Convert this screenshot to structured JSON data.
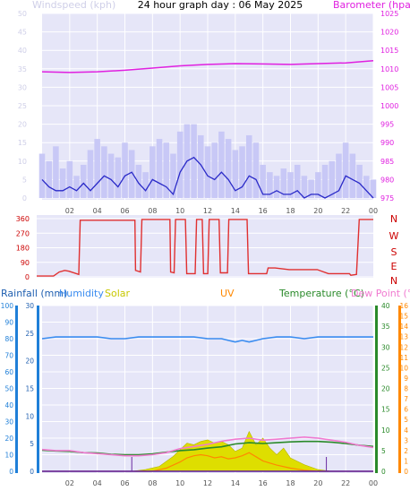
{
  "title": "24 hour graph day : 06 May 2025",
  "colors": {
    "plot_bg": "#e6e6f8",
    "grid": "#ffffff",
    "wind_gust": "#c8c8f6",
    "wind_avg": "#2a2ac8",
    "barometer": "#e020e0",
    "direction": "#e03030",
    "humidity": "#3a8cf0",
    "temperature": "#2a8a2a",
    "dewpoint": "#f07ad0",
    "solar": "#dede00",
    "uv": "#ff8800",
    "rainfall": "#1f7fd8",
    "left_label": "#cfcfe8",
    "dir_letters": "#cc0000",
    "axis_ticks": "#555555"
  },
  "chart_data": [
    {
      "type": "line",
      "name": "top",
      "x_ticks": [
        "02",
        "04",
        "06",
        "08",
        "10",
        "12",
        "14",
        "16",
        "18",
        "20",
        "22",
        "00"
      ],
      "left_axis": {
        "label": "Windspeed (kph)",
        "ticks": [
          0,
          5,
          10,
          15,
          20,
          25,
          30,
          35,
          40,
          45,
          50
        ],
        "range": [
          0,
          50
        ]
      },
      "right_axis": {
        "label": "Barometer (hpa)",
        "ticks": [
          975,
          980,
          985,
          990,
          995,
          1000,
          1005,
          1010,
          1015,
          1020,
          1025
        ],
        "range": [
          975,
          1025
        ]
      },
      "series": [
        {
          "name": "Windspeed (kph)",
          "axis": "left",
          "kind": "gust",
          "x": [
            0,
            0.5,
            1,
            1.5,
            2,
            2.5,
            3,
            3.5,
            4,
            4.5,
            5,
            5.5,
            6,
            6.5,
            7,
            7.5,
            8,
            8.5,
            9,
            9.5,
            10,
            10.5,
            11,
            11.5,
            12,
            12.5,
            13,
            13.5,
            14,
            14.5,
            15,
            15.5,
            16,
            16.5,
            17,
            17.5,
            18,
            18.5,
            19,
            19.5,
            20,
            20.5,
            21,
            21.5,
            22,
            22.5,
            23,
            23.5,
            24
          ],
          "y": [
            12,
            10,
            14,
            8,
            10,
            6,
            9,
            13,
            16,
            14,
            12,
            11,
            15,
            13,
            9,
            7,
            14,
            16,
            15,
            12,
            18,
            20,
            20,
            17,
            14,
            15,
            18,
            16,
            13,
            14,
            17,
            15,
            9,
            7,
            6,
            8,
            7,
            9,
            6,
            5,
            7,
            9,
            10,
            12,
            15,
            12,
            9,
            6,
            5
          ]
        },
        {
          "name": "Windspeed avg",
          "axis": "left",
          "kind": "average",
          "x": [
            0,
            0.5,
            1,
            1.5,
            2,
            2.5,
            3,
            3.5,
            4,
            4.5,
            5,
            5.5,
            6,
            6.5,
            7,
            7.5,
            8,
            8.5,
            9,
            9.5,
            10,
            10.5,
            11,
            11.5,
            12,
            12.5,
            13,
            13.5,
            14,
            14.5,
            15,
            15.5,
            16,
            16.5,
            17,
            17.5,
            18,
            18.5,
            19,
            19.5,
            20,
            20.5,
            21,
            21.5,
            22,
            22.5,
            23,
            23.5,
            24
          ],
          "y": [
            5,
            3,
            2,
            2,
            3,
            2,
            4,
            2,
            4,
            6,
            5,
            3,
            6,
            7,
            4,
            2,
            5,
            4,
            3,
            1,
            7,
            10,
            11,
            9,
            6,
            5,
            7,
            5,
            2,
            3,
            6,
            5,
            1,
            1,
            2,
            1,
            1,
            2,
            0,
            1,
            1,
            0,
            1,
            2,
            6,
            5,
            4,
            2,
            0
          ]
        },
        {
          "name": "Barometer (hpa)",
          "axis": "right",
          "x": [
            0,
            2,
            4,
            6,
            8,
            10,
            12,
            14,
            16,
            18,
            20,
            22,
            24
          ],
          "y": [
            1009.2,
            1009.0,
            1009.2,
            1009.6,
            1010.2,
            1010.8,
            1011.2,
            1011.4,
            1011.3,
            1011.2,
            1011.4,
            1011.6,
            1012.2
          ]
        }
      ]
    },
    {
      "type": "line",
      "name": "direction",
      "y_ticks": [
        0,
        90,
        180,
        270,
        360
      ],
      "y_range": [
        0,
        360
      ],
      "direction_labels": [
        "N",
        "W",
        "S",
        "E",
        "N"
      ],
      "series": [
        {
          "name": "Wind direction",
          "x": [
            0,
            1.2,
            1.6,
            2,
            2.3,
            3,
            3.1,
            4,
            4.5,
            5,
            5.8,
            6.3,
            6.9,
            7,
            7.05,
            7.4,
            7.5,
            8,
            8.5,
            9.1,
            9.5,
            9.55,
            9.8,
            9.9,
            10.6,
            10.7,
            11.3,
            11.4,
            11.8,
            11.9,
            12.2,
            12.3,
            13,
            13.1,
            13.6,
            13.7,
            15,
            15.1,
            15.6,
            16.4,
            16.5,
            17,
            18,
            20,
            20.8,
            20.9,
            22.3,
            22.4,
            22.8,
            23,
            23.1,
            24
          ],
          "y": [
            5,
            5,
            30,
            40,
            35,
            15,
            350,
            350,
            350,
            350,
            350,
            350,
            350,
            350,
            40,
            30,
            355,
            355,
            355,
            355,
            355,
            30,
            25,
            355,
            355,
            20,
            20,
            355,
            355,
            20,
            20,
            355,
            355,
            25,
            25,
            355,
            355,
            20,
            20,
            20,
            55,
            55,
            45,
            45,
            20,
            20,
            20,
            10,
            15,
            355,
            355,
            355
          ]
        }
      ]
    },
    {
      "type": "line",
      "name": "bottom",
      "x_ticks": [
        "02",
        "04",
        "06",
        "08",
        "10",
        "12",
        "14",
        "16",
        "18",
        "20",
        "22",
        "00"
      ],
      "legend": [
        "Rainfall (mm)",
        "Humidity",
        "Solar",
        "UV",
        "Temperature (°C)",
        "Dew Point (°C)"
      ],
      "axes": {
        "rain_left": [
          0,
          10,
          20,
          30,
          40,
          50,
          60,
          70,
          80,
          90,
          100
        ],
        "humidity_left": [
          0,
          5,
          10,
          15,
          20,
          25,
          30
        ],
        "temp_right": [
          0,
          5,
          10,
          15,
          20,
          25,
          30,
          35,
          40
        ],
        "dew_right": [
          0,
          1,
          2,
          3,
          4,
          5,
          6,
          7,
          8,
          9,
          10,
          11,
          12,
          13,
          14,
          15,
          16
        ]
      },
      "series": [
        {
          "name": "Humidity",
          "axis": "rain_left",
          "x": [
            0,
            1,
            2,
            3,
            4,
            5,
            6,
            7,
            8,
            9,
            10,
            11,
            12,
            13,
            13.5,
            14,
            14.5,
            15,
            15.5,
            16,
            17,
            18,
            19,
            20,
            21,
            22,
            23,
            24
          ],
          "y": [
            80,
            81,
            81,
            81,
            81,
            80,
            80,
            81,
            81,
            81,
            81,
            81,
            80,
            80,
            79,
            78,
            79,
            78,
            79,
            80,
            81,
            81,
            80,
            81,
            81,
            81,
            81,
            81
          ]
        },
        {
          "name": "Temperature",
          "axis": "temp_right",
          "x": [
            0,
            1,
            2,
            3,
            4,
            5,
            6,
            7,
            8,
            9,
            10,
            11,
            12,
            13,
            14,
            15,
            16,
            17,
            18,
            19,
            20,
            21,
            22,
            23,
            24
          ],
          "y": [
            5.1,
            4.9,
            4.8,
            4.5,
            4.4,
            4.1,
            4.0,
            4.0,
            4.2,
            4.6,
            5.0,
            5.2,
            5.6,
            5.9,
            6.6,
            6.9,
            6.7,
            6.9,
            7.1,
            7.2,
            7.2,
            7.0,
            6.7,
            6.3,
            6.0
          ]
        },
        {
          "name": "Dew Point",
          "axis": "dew_right",
          "x": [
            0,
            1,
            2,
            3,
            4,
            5,
            6,
            7,
            8,
            9,
            10,
            11,
            12,
            13,
            14,
            15,
            16,
            17,
            18,
            19,
            20,
            21,
            22,
            23,
            24
          ],
          "y": [
            2.1,
            2.0,
            2.0,
            1.8,
            1.7,
            1.6,
            1.5,
            1.5,
            1.6,
            1.8,
            2.2,
            2.4,
            2.6,
            2.9,
            3.1,
            3.2,
            3.0,
            3.1,
            3.2,
            3.3,
            3.2,
            3.0,
            2.8,
            2.5,
            2.3
          ]
        },
        {
          "name": "Solar",
          "axis": "rain_left",
          "kind": "area",
          "x": [
            0,
            6.5,
            7.5,
            8.5,
            9,
            9.5,
            10,
            10.5,
            11,
            11.5,
            12,
            12.5,
            13,
            13.5,
            14,
            14.5,
            15,
            15.5,
            16,
            16.5,
            17,
            17.5,
            18,
            18.5,
            19,
            20,
            21,
            24
          ],
          "y": [
            0,
            0,
            1,
            3,
            6,
            9,
            13,
            17,
            16,
            18,
            19,
            17,
            18,
            16,
            12,
            14,
            24,
            16,
            20,
            14,
            10,
            14,
            8,
            6,
            4,
            1,
            0,
            0
          ]
        },
        {
          "name": "UV",
          "axis": "dew_right",
          "x": [
            0,
            8,
            9,
            10,
            10.5,
            11,
            11.5,
            12,
            12.5,
            13,
            13.5,
            14,
            14.5,
            15,
            15.5,
            16,
            16.5,
            17,
            18,
            19,
            20,
            24
          ],
          "y": [
            0,
            0,
            0.3,
            0.9,
            1.3,
            1.5,
            1.6,
            1.5,
            1.3,
            1.4,
            1.2,
            1.3,
            1.5,
            1.8,
            1.4,
            1.0,
            0.8,
            0.6,
            0.3,
            0.1,
            0,
            0
          ]
        },
        {
          "name": "Rainfall",
          "axis": "rain_left",
          "x": [
            0,
            24
          ],
          "y": [
            0,
            0
          ]
        }
      ]
    }
  ]
}
